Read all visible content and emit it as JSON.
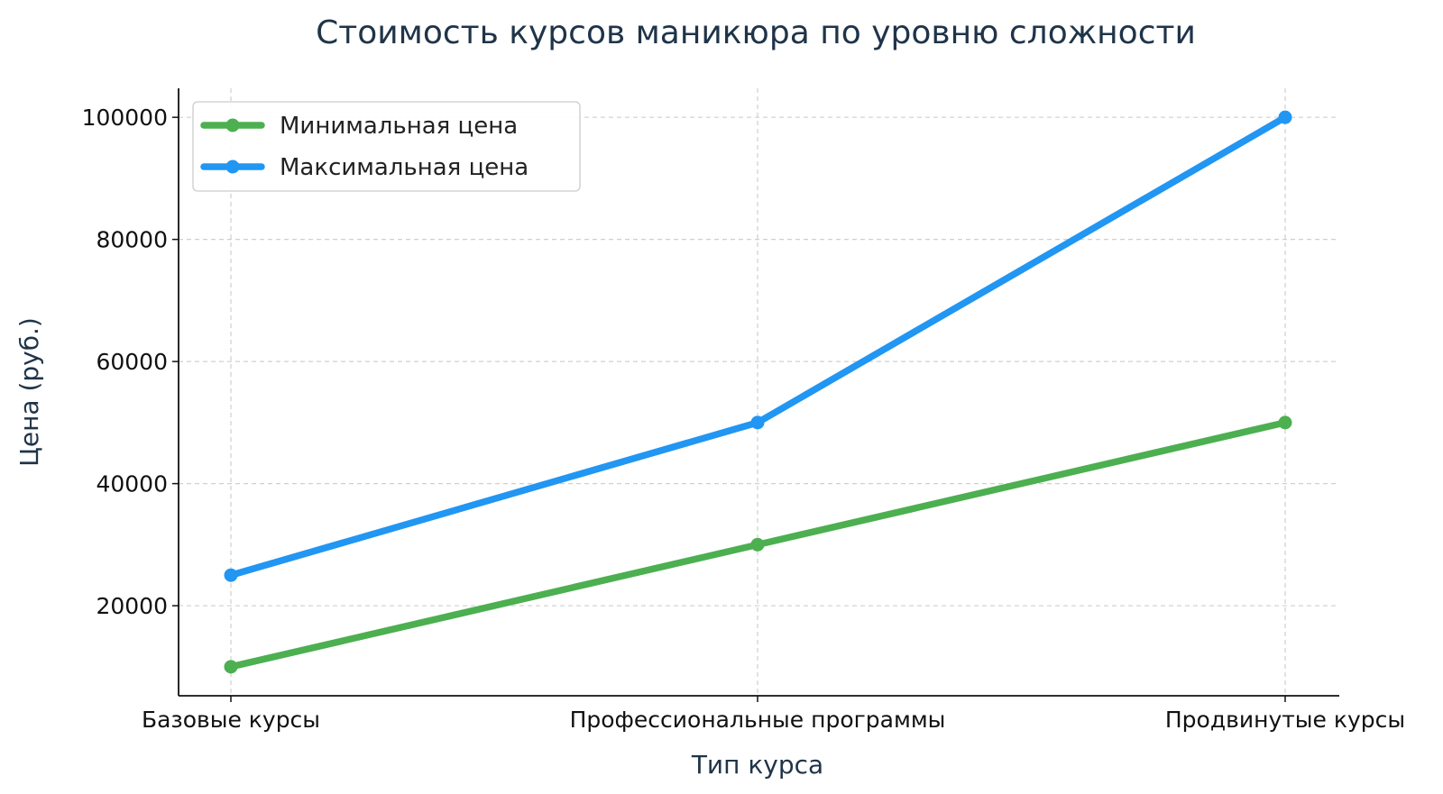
{
  "chart_data": {
    "type": "line",
    "title": "Стоимость курсов маникюра по уровню сложности",
    "xlabel": "Тип курса",
    "ylabel": "Цена (руб.)",
    "categories": [
      "Базовые курсы",
      "Профессиональные программы",
      "Продвинутые курсы"
    ],
    "series": [
      {
        "name": "Минимальная цена",
        "color": "#4caf50",
        "values": [
          10000,
          30000,
          50000
        ]
      },
      {
        "name": "Максимальная цена",
        "color": "#2196f3",
        "values": [
          25000,
          50000,
          100000
        ]
      }
    ],
    "yticks": [
      20000,
      40000,
      60000,
      80000,
      100000
    ],
    "ylim": [
      5250,
      104750
    ],
    "grid": true,
    "legend": "upper-left"
  }
}
